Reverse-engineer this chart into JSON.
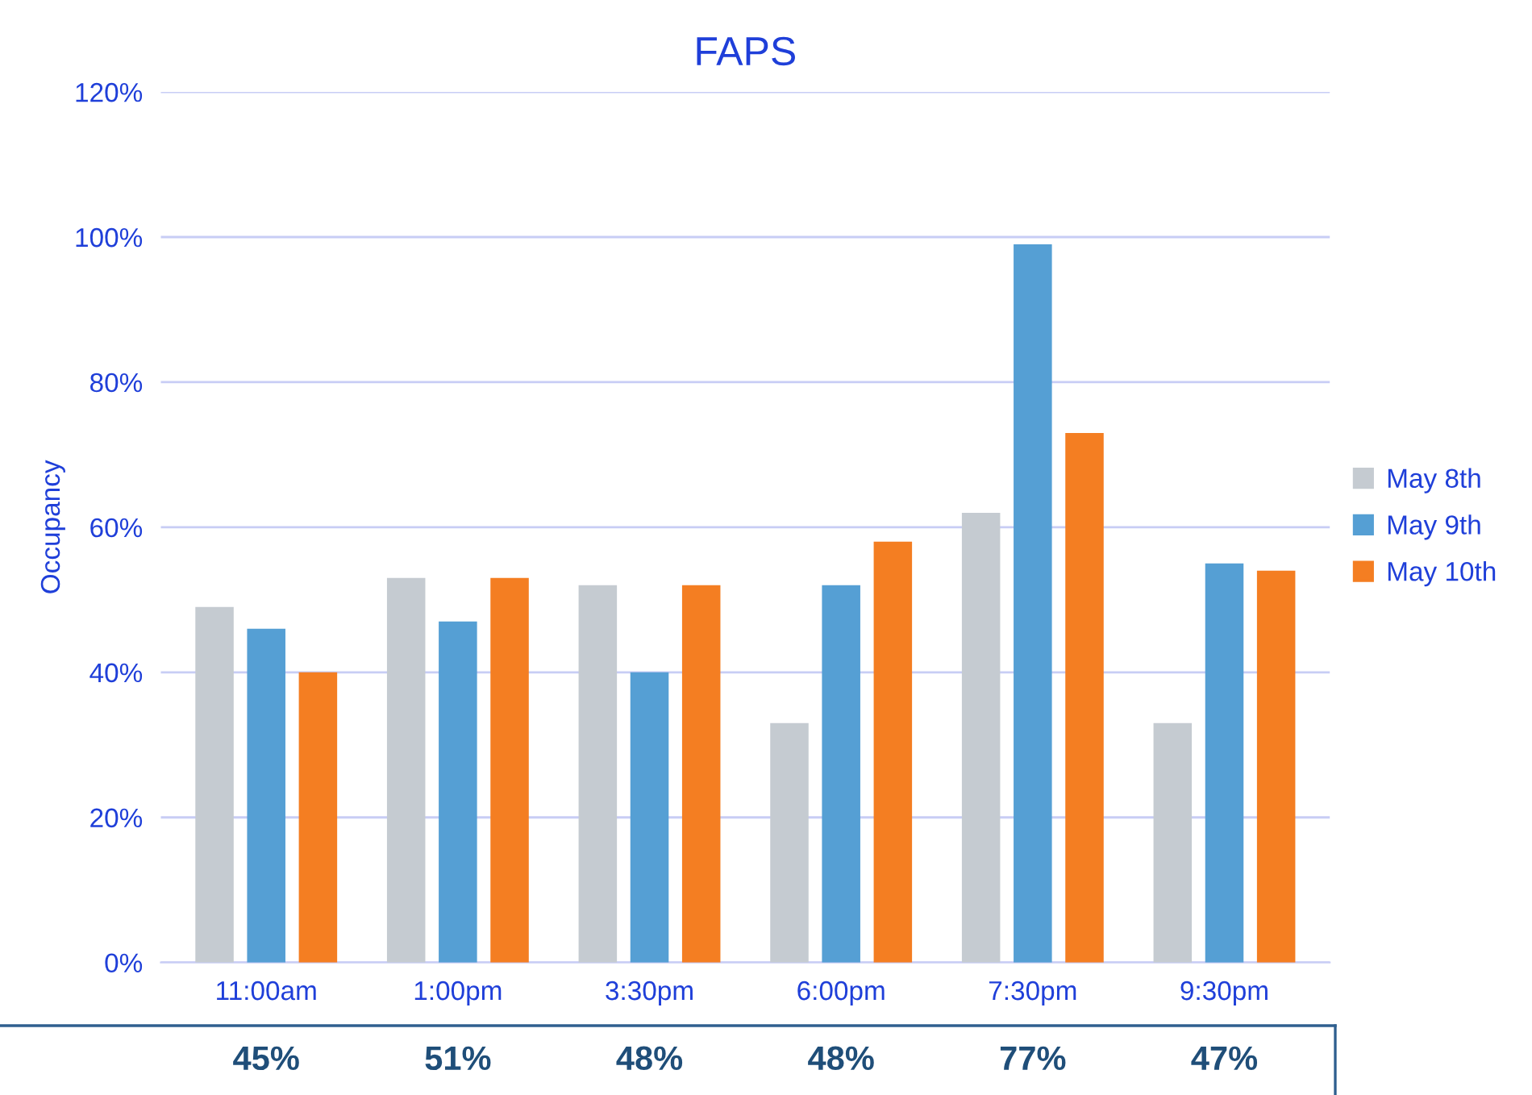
{
  "chart_data": {
    "type": "bar",
    "title": "FAPS",
    "ylabel": "Occupancy",
    "categories": [
      "11:00am",
      "1:00pm",
      "3:30pm",
      "6:00pm",
      "7:30pm",
      "9:30pm"
    ],
    "series": [
      {
        "name": "May 8th",
        "color": "#c5cbd1",
        "values": [
          49,
          53,
          52,
          33,
          62,
          33
        ]
      },
      {
        "name": "May 9th",
        "color": "#559fd4",
        "values": [
          46,
          47,
          40,
          52,
          99,
          55
        ]
      },
      {
        "name": "May 10th",
        "color": "#f47e22",
        "values": [
          40,
          53,
          52,
          58,
          73,
          54
        ]
      }
    ],
    "ylim": [
      0,
      120
    ],
    "yticks": [
      {
        "value": 0,
        "label": "0%"
      },
      {
        "value": 20,
        "label": "20%"
      },
      {
        "value": 40,
        "label": "40%"
      },
      {
        "value": 60,
        "label": "60%"
      },
      {
        "value": 80,
        "label": "80%"
      },
      {
        "value": 100,
        "label": "100%"
      },
      {
        "value": 120,
        "label": "120%"
      }
    ],
    "grid": "y",
    "legend": "right",
    "annotations": [
      "45%",
      "51%",
      "48%",
      "48%",
      "77%",
      "47%"
    ]
  }
}
